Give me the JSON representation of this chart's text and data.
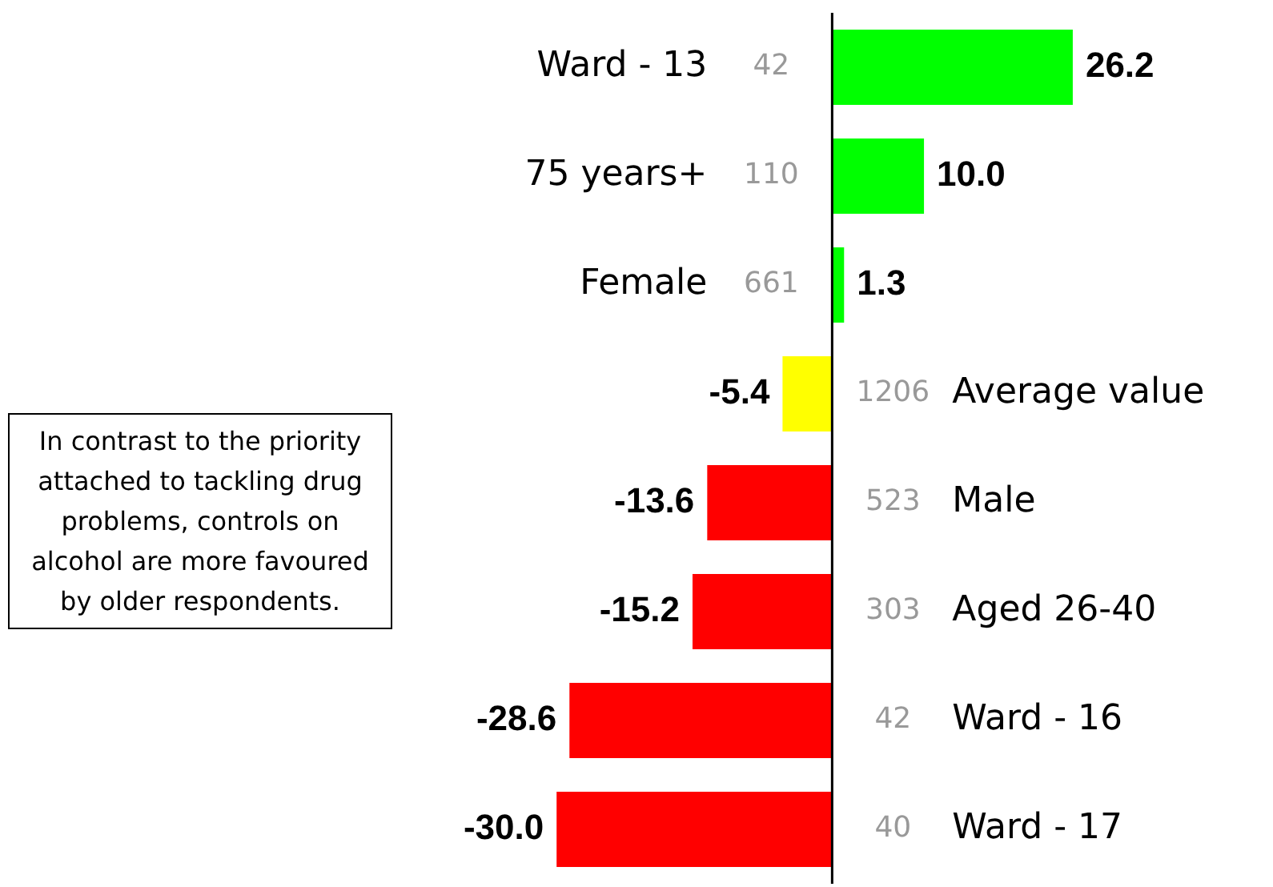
{
  "chart_data": {
    "type": "bar",
    "orientation": "horizontal",
    "legend": false,
    "tick_labels": false,
    "categories": [
      "Ward - 13",
      "75 years+",
      "Female",
      "Average value",
      "Male",
      "Aged 26-40",
      "Ward - 16",
      "Ward - 17"
    ],
    "values": [
      26.2,
      10.0,
      1.3,
      -5.4,
      -13.6,
      -15.2,
      -28.6,
      -30.0
    ],
    "value_labels": [
      "26.2",
      "10.0",
      "1.3",
      "-5.4",
      "-13.6",
      "-15.2",
      "-28.6",
      "-30.0"
    ],
    "colors": [
      "#00ff00",
      "#00ff00",
      "#00ff00",
      "#ffff00",
      "#ff0000",
      "#ff0000",
      "#ff0000",
      "#ff0000"
    ],
    "annotations": [
      "In contrast to the priority attached to tackling drug problems, controls on alcohol are more favoured by older respondents.",
      "42",
      "110",
      "661",
      "1206",
      "523",
      "303",
      "42",
      "40"
    ]
  }
}
